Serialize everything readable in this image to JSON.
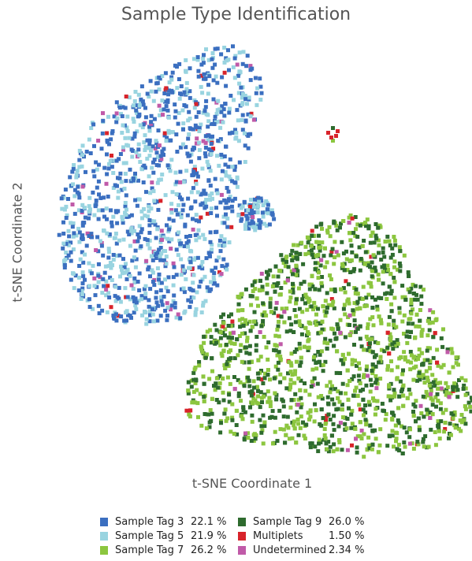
{
  "chart_data": {
    "type": "scatter",
    "title": "Sample Type Identification",
    "xlabel": "t-SNE Coordinate 1",
    "ylabel": "t-SNE Coordinate 2",
    "grid": false,
    "legend_position": "bottom",
    "series": [
      {
        "name": "Sample Tag 3",
        "percent": "22.1 %",
        "color": "#3b6fc0"
      },
      {
        "name": "Sample Tag 5",
        "percent": "21.9 %",
        "color": "#99d4e0"
      },
      {
        "name": "Sample Tag 7",
        "percent": "26.2 %",
        "color": "#8cc63f"
      },
      {
        "name": "Sample Tag 9",
        "percent": "26.0 %",
        "color": "#2e6b2e"
      },
      {
        "name": "Multiplets",
        "percent": "1.50 %",
        "color": "#d8232a"
      },
      {
        "name": "Undetermined",
        "percent": "2.34 %",
        "color": "#c05aa8"
      }
    ],
    "clusters": [
      {
        "series": [
          "Sample Tag 3",
          "Sample Tag 5"
        ],
        "region": "upper-left"
      },
      {
        "series": [
          "Sample Tag 7",
          "Sample Tag 9"
        ],
        "region": "lower-right"
      },
      {
        "series": [
          "Multiplets"
        ],
        "region": "small island upper-center"
      }
    ]
  }
}
